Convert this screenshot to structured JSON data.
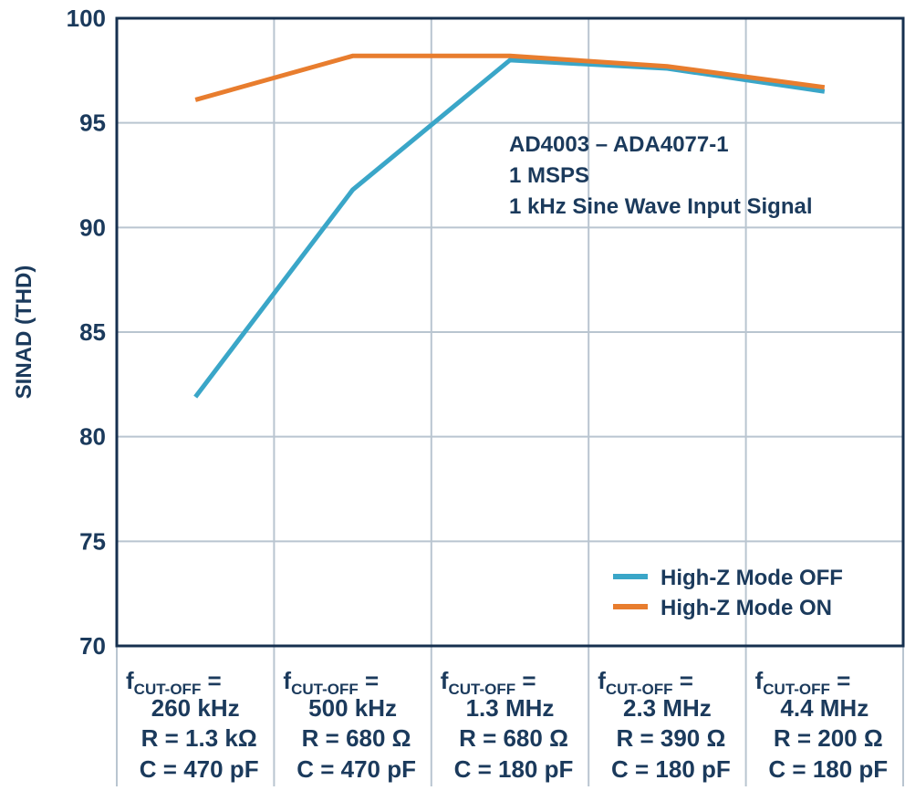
{
  "chart_data": {
    "type": "line",
    "title": "",
    "ylabel": "SINAD (THD)",
    "xlabel": "",
    "ylim": [
      70,
      100
    ],
    "yticks": [
      70,
      75,
      80,
      85,
      90,
      95,
      100
    ],
    "grid": true,
    "categories": [
      {
        "f": "260 kHz",
        "r": "R = 1.3 kΩ",
        "c": "C = 470 pF"
      },
      {
        "f": "500 kHz",
        "r": "R = 680 Ω",
        "c": "C = 470 pF"
      },
      {
        "f": "1.3 MHz",
        "r": "R = 680 Ω",
        "c": "C = 180 pF"
      },
      {
        "f": "2.3 MHz",
        "r": "R = 390 Ω",
        "c": "C = 180 pF"
      },
      {
        "f": "4.4 MHz",
        "r": "R = 200 Ω",
        "c": "C = 180 pF"
      }
    ],
    "category_prefix": {
      "f": "f",
      "sub": "CUT-OFF",
      "eq": " ="
    },
    "series": [
      {
        "name": "High-Z Mode OFF",
        "color": "#3aa6c8",
        "values": [
          81.9,
          91.8,
          98.0,
          97.6,
          96.5
        ]
      },
      {
        "name": "High-Z Mode ON",
        "color": "#e87d2e",
        "values": [
          96.1,
          98.2,
          98.2,
          97.7,
          96.7
        ]
      }
    ],
    "annotation": [
      "AD4003 – ADA4077-1",
      "1 MSPS",
      "1 kHz Sine Wave Input Signal"
    ],
    "legend_position": "bottom-right",
    "colors": {
      "text": "#1b3a5c",
      "axis": "#16304f",
      "grid": "#b9c5d0"
    }
  }
}
